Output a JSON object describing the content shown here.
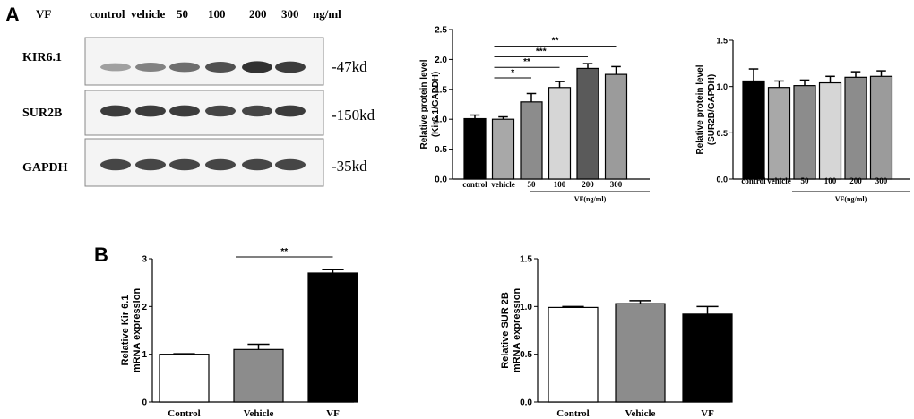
{
  "panels": {
    "a_letter": "A",
    "b_letter": "B"
  },
  "blot": {
    "header": {
      "drug": "VF",
      "lanes": [
        "control",
        "vehicle",
        "50",
        "100",
        "200",
        "300"
      ],
      "unit": "ng/ml"
    },
    "rows": [
      {
        "protein": "KIR6.1",
        "size": "-47kd",
        "intensities": [
          0.35,
          0.5,
          0.6,
          0.75,
          0.9,
          0.85
        ]
      },
      {
        "protein": "SUR2B",
        "size": "-150kd",
        "intensities": [
          0.85,
          0.85,
          0.85,
          0.8,
          0.8,
          0.85
        ]
      },
      {
        "protein": "GAPDH",
        "size": "-35kd",
        "intensities": [
          0.8,
          0.8,
          0.8,
          0.8,
          0.8,
          0.8
        ]
      }
    ]
  },
  "colors": {
    "black": "#000000",
    "light_gray": "#a8a8a8",
    "mid_gray": "#8c8c8c",
    "very_light": "#d6d6d6",
    "dark_gray": "#5a5a5a",
    "gray": "#9b9b9b",
    "white": "#ffffff"
  },
  "chart_data": [
    {
      "id": "kir61-protein",
      "type": "bar",
      "categories": [
        "control",
        "vehicle",
        "50",
        "100",
        "200",
        "300"
      ],
      "values": [
        1.01,
        1.0,
        1.29,
        1.53,
        1.85,
        1.75
      ],
      "errors": [
        0.06,
        0.04,
        0.14,
        0.1,
        0.08,
        0.13
      ],
      "colors": [
        "#000000",
        "#a8a8a8",
        "#8c8c8c",
        "#d6d6d6",
        "#5a5a5a",
        "#9b9b9b"
      ],
      "title": "",
      "ylabel_lines": [
        "Relative protein level",
        "(Kir6.1/GAPDH)"
      ],
      "xlabel": "VF(ng/ml)",
      "ylim": [
        0,
        2.5
      ],
      "yticks": [
        "0.0",
        "0.5",
        "1.0",
        "1.5",
        "2.0",
        "2.5"
      ],
      "significance": [
        {
          "from": 1,
          "to": 2,
          "label": "*"
        },
        {
          "from": 1,
          "to": 3,
          "label": "**"
        },
        {
          "from": 1,
          "to": 4,
          "label": "***"
        },
        {
          "from": 1,
          "to": 5,
          "label": "**"
        }
      ]
    },
    {
      "id": "sur2b-protein",
      "type": "bar",
      "categories": [
        "control",
        "vehicle",
        "50",
        "100",
        "200",
        "300"
      ],
      "values": [
        1.06,
        0.99,
        1.01,
        1.04,
        1.1,
        1.11
      ],
      "errors": [
        0.13,
        0.07,
        0.06,
        0.07,
        0.06,
        0.06
      ],
      "colors": [
        "#000000",
        "#a8a8a8",
        "#8c8c8c",
        "#d6d6d6",
        "#8c8c8c",
        "#9b9b9b"
      ],
      "title": "",
      "ylabel_lines": [
        "Relative protein level",
        "(SUR2B/GAPDH)"
      ],
      "xlabel": "VF(ng/ml)",
      "ylim": [
        0,
        1.5
      ],
      "yticks": [
        "0.0",
        "0.5",
        "1.0",
        "1.5"
      ],
      "significance": []
    },
    {
      "id": "kir61-mrna",
      "type": "bar",
      "categories": [
        "Control",
        "Vehicle",
        "VF"
      ],
      "values": [
        1.0,
        1.1,
        2.7
      ],
      "errors": [
        0.01,
        0.11,
        0.07
      ],
      "colors": [
        "#ffffff",
        "#8c8c8c",
        "#000000"
      ],
      "title": "",
      "ylabel_lines": [
        "Relative Kir 6.1",
        "mRNA expression"
      ],
      "xlabel": "",
      "ylim": [
        0,
        3
      ],
      "yticks": [
        "0",
        "1",
        "2",
        "3"
      ],
      "significance": [
        {
          "from": 1,
          "to": 2,
          "label": "**"
        }
      ]
    },
    {
      "id": "sur2b-mrna",
      "type": "bar",
      "categories": [
        "Control",
        "Vehicle",
        "VF"
      ],
      "values": [
        0.99,
        1.03,
        0.92
      ],
      "errors": [
        0.01,
        0.03,
        0.08
      ],
      "colors": [
        "#ffffff",
        "#8c8c8c",
        "#000000"
      ],
      "title": "",
      "ylabel_lines": [
        "Relative SUR 2B",
        "mRNA expression"
      ],
      "xlabel": "",
      "ylim": [
        0,
        1.5
      ],
      "yticks": [
        "0.0",
        "0.5",
        "1.0",
        "1.5"
      ],
      "significance": []
    }
  ]
}
